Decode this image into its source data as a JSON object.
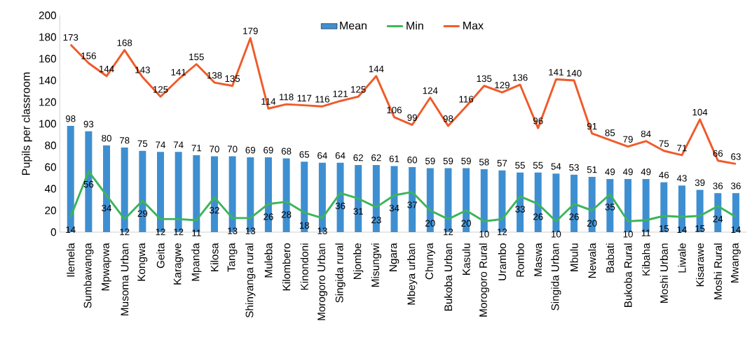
{
  "chart_data": {
    "type": "bar",
    "ylabel": "Pupils per classroom",
    "categories": [
      "Ilemela",
      "Sumbawanga",
      "Mpwapwa",
      "Musoma Urban",
      "Kongwa",
      "Geita",
      "Karagwe",
      "Mpanda",
      "Kilosa",
      "Tanga",
      "Shinyanga rural",
      "Muleba",
      "Kilombero",
      "Kinondoni",
      "Morogoro Urban",
      "Singida rural",
      "Njombe",
      "Misungwi",
      "Ngara",
      "Mbeya urban",
      "Chunya",
      "Bukoba Urban",
      "Kasulu",
      "Morogoro Rural",
      "Urambo",
      "Rombo",
      "Maswa",
      "Singida Urban",
      "Mbulu",
      "Newala",
      "Babati",
      "Bukoba Rural",
      "Kibaha",
      "Moshi Urban",
      "Liwale",
      "Kisarawe",
      "Moshi Rural",
      "Mwanga"
    ],
    "series": [
      {
        "name": "Mean",
        "type": "bar",
        "color": "#3e8fd1",
        "values": [
          98,
          93,
          80,
          78,
          75,
          74,
          74,
          71,
          70,
          70,
          69,
          69,
          68,
          65,
          64,
          64,
          62,
          62,
          61,
          60,
          59,
          59,
          59,
          58,
          57,
          55,
          55,
          54,
          53,
          51,
          49,
          49,
          49,
          46,
          43,
          39,
          36,
          36
        ]
      },
      {
        "name": "Min",
        "type": "line",
        "color": "#3cb45a",
        "values": [
          14,
          56,
          34,
          12,
          29,
          12,
          12,
          11,
          32,
          13,
          13,
          26,
          28,
          18,
          13,
          36,
          31,
          23,
          34,
          37,
          20,
          12,
          20,
          10,
          12,
          33,
          26,
          10,
          26,
          20,
          35,
          10,
          11,
          15,
          14,
          15,
          24,
          14
        ]
      },
      {
        "name": "Max",
        "type": "line",
        "color": "#f05a28",
        "values": [
          173,
          156,
          144,
          168,
          143,
          125,
          141,
          155,
          138,
          135,
          179,
          114,
          118,
          117,
          116,
          121,
          125,
          144,
          106,
          99,
          124,
          98,
          116,
          135,
          129,
          136,
          96,
          141,
          140,
          91,
          85,
          79,
          84,
          75,
          71,
          104,
          66,
          63
        ]
      }
    ],
    "ylim": [
      0,
      200
    ],
    "yticks": [
      0,
      20,
      40,
      60,
      80,
      100,
      120,
      140,
      160,
      180,
      200
    ],
    "data_labels": true,
    "legend": "top",
    "marker": "none",
    "line_style": "solid"
  }
}
